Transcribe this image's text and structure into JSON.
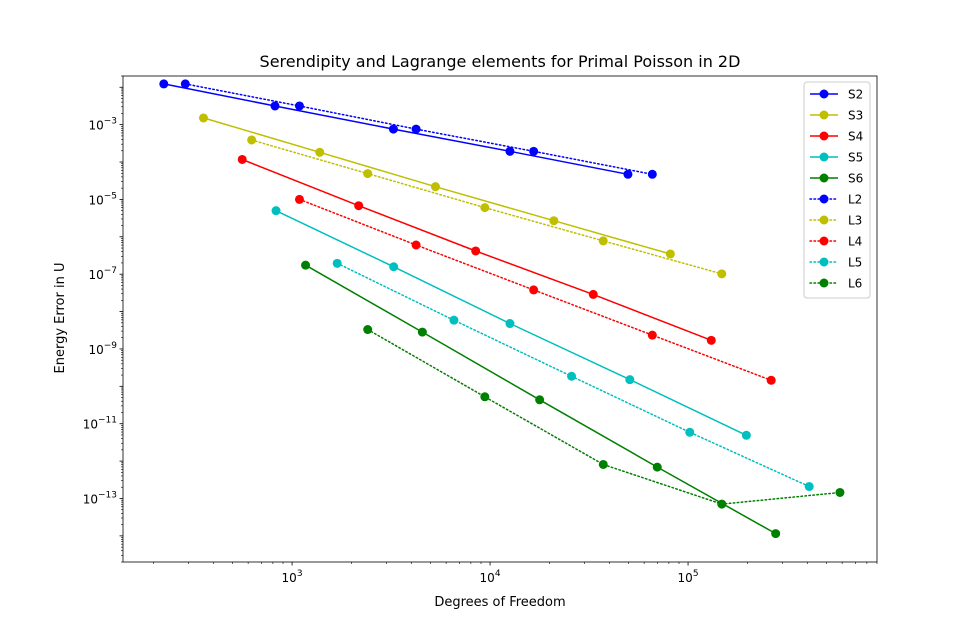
{
  "chart_data": {
    "type": "line",
    "title": "Serendipity and Lagrange elements for Primal Poisson in 2D",
    "xlabel": "Degrees of Freedom",
    "ylabel": "Energy Error in U",
    "xscale": "log",
    "yscale": "log",
    "xlim": [
      140,
      900000
    ],
    "ylim": [
      2e-15,
      0.02
    ],
    "xticks": [
      {
        "value": 1000,
        "base": "10",
        "exp": "3"
      },
      {
        "value": 10000,
        "base": "10",
        "exp": "4"
      },
      {
        "value": 100000,
        "base": "10",
        "exp": "5"
      }
    ],
    "yticks": [
      {
        "value": 0.001,
        "base": "10",
        "exp": "−3"
      },
      {
        "value": 1e-05,
        "base": "10",
        "exp": "−5"
      },
      {
        "value": 1e-07,
        "base": "10",
        "exp": "−7"
      },
      {
        "value": 1e-09,
        "base": "10",
        "exp": "−9"
      },
      {
        "value": 1e-11,
        "base": "10",
        "exp": "−11"
      },
      {
        "value": 1e-13,
        "base": "10",
        "exp": "−13"
      }
    ],
    "grid": false,
    "legend_position": "top-right",
    "series": [
      {
        "name": "S2",
        "color": "#0000ff",
        "style": "solid",
        "x": [
          225,
          820,
          3250,
          12600,
          49700
        ],
        "y": [
          0.0123,
          0.00316,
          0.000759,
          0.000193,
          4.7e-05
        ]
      },
      {
        "name": "S3",
        "color": "#bfbf00",
        "style": "solid",
        "x": [
          357,
          1380,
          5300,
          21000,
          81400
        ],
        "y": [
          0.00151,
          0.000182,
          2.19e-05,
          2.69e-06,
          3.47e-07
        ]
      },
      {
        "name": "S4",
        "color": "#ff0000",
        "style": "solid",
        "x": [
          560,
          2170,
          8460,
          33200,
          131000
        ],
        "y": [
          0.000117,
          6.78e-06,
          4.17e-07,
          2.88e-08,
          1.7e-09
        ]
      },
      {
        "name": "S5",
        "color": "#00bfbf",
        "style": "solid",
        "x": [
          830,
          3260,
          12600,
          50800,
          197000
        ],
        "y": [
          5e-06,
          1.58e-07,
          4.79e-09,
          1.51e-10,
          4.9e-12
        ]
      },
      {
        "name": "S6",
        "color": "#008000",
        "style": "solid",
        "x": [
          1170,
          4550,
          17800,
          69900,
          277000
        ],
        "y": [
          1.74e-07,
          2.82e-09,
          4.37e-11,
          6.9e-13,
          1.15e-14
        ]
      },
      {
        "name": "L2",
        "color": "#0000ff",
        "style": "dotted",
        "x": [
          289,
          1090,
          4230,
          16600,
          66000
        ],
        "y": [
          0.0123,
          0.00316,
          0.000759,
          0.000193,
          4.7e-05
        ]
      },
      {
        "name": "L3",
        "color": "#bfbf00",
        "style": "dotted",
        "x": [
          625,
          2410,
          9410,
          37300,
          148000
        ],
        "y": [
          0.000389,
          4.9e-05,
          6.03e-06,
          7.76e-07,
          1.02e-07
        ]
      },
      {
        "name": "L4",
        "color": "#ff0000",
        "style": "dotted",
        "x": [
          1090,
          4230,
          16600,
          66000,
          263000
        ],
        "y": [
          1e-05,
          6.03e-07,
          3.8e-08,
          2.34e-09,
          1.45e-10
        ]
      },
      {
        "name": "L5",
        "color": "#00bfbf",
        "style": "dotted",
        "x": [
          1690,
          6570,
          25800,
          102000,
          409000
        ],
        "y": [
          1.95e-07,
          5.89e-09,
          1.86e-10,
          5.89e-12,
          2.09e-13
        ]
      },
      {
        "name": "L6",
        "color": "#008000",
        "style": "dotted",
        "x": [
          2410,
          9410,
          37300,
          148000,
          585000
        ],
        "y": [
          3.31e-09,
          5.25e-11,
          8.13e-13,
          7.08e-14,
          1.45e-13
        ]
      }
    ]
  }
}
